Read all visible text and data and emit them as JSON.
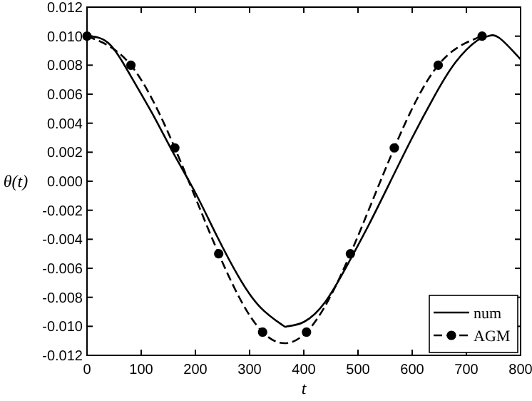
{
  "chart_data": {
    "type": "line",
    "xlabel": "t",
    "ylabel": "θ(t)",
    "xlim": [
      0,
      800
    ],
    "xticks": [
      0,
      100,
      200,
      300,
      400,
      500,
      600,
      700,
      800
    ],
    "ylim": [
      -0.012,
      0.012
    ],
    "yticks": [
      {
        "value": -0.012,
        "label": "-0.012"
      },
      {
        "value": -0.01,
        "label": "-0.010"
      },
      {
        "value": -0.008,
        "label": "-0.008"
      },
      {
        "value": -0.006,
        "label": "-0.006"
      },
      {
        "value": -0.004,
        "label": "-0.004"
      },
      {
        "value": -0.002,
        "label": "-0.002"
      },
      {
        "value": 0,
        "label": "0.000"
      },
      {
        "value": 0.002,
        "label": "0.002"
      },
      {
        "value": 0.004,
        "label": "0.004"
      },
      {
        "value": 0.006,
        "label": "0.006"
      },
      {
        "value": 0.008,
        "label": "0.008"
      },
      {
        "value": 0.01,
        "label": "0.010"
      },
      {
        "value": 0.012,
        "label": "0.012"
      }
    ],
    "grid": false,
    "legend": "bottom right",
    "series": [
      {
        "name": "num",
        "color": "#000000",
        "line_style": "solid",
        "marker": "none",
        "x": [
          0,
          40,
          80,
          120,
          160,
          200,
          240,
          280,
          320,
          360,
          370,
          400,
          440,
          480,
          520,
          560,
          600,
          640,
          680,
          720,
          740,
          760,
          800
        ],
        "values": [
          0.01,
          0.0095,
          0.0073,
          0.0047,
          0.0019,
          -0.0008,
          -0.0038,
          -0.0066,
          -0.0087,
          -0.0099,
          -0.01,
          -0.0097,
          -0.0083,
          -0.0058,
          -0.003,
          0,
          0.003,
          0.0058,
          0.0082,
          0.0097,
          0.01,
          0.0099,
          0.0084
        ]
      },
      {
        "name": "AGM",
        "color": "#000000",
        "line_style": "dashed",
        "marker": "circle",
        "x": [
          0,
          81,
          162,
          243,
          324,
          405,
          486,
          567,
          648,
          729
        ],
        "values": [
          0.01,
          0.008,
          0.0023,
          -0.005,
          -0.0104,
          -0.0104,
          -0.005,
          0.0023,
          0.008,
          0.01
        ]
      }
    ]
  }
}
